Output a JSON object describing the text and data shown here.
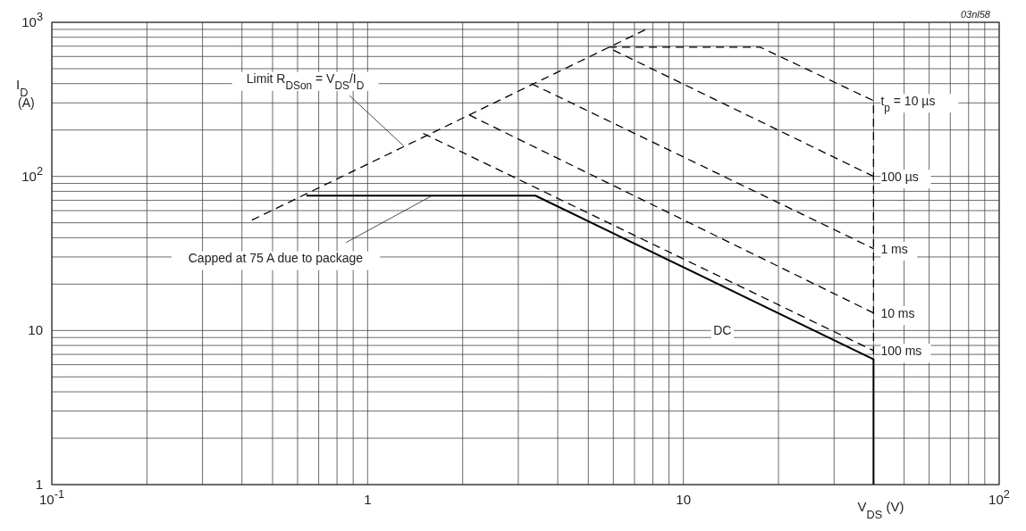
{
  "chart_data": {
    "type": "line",
    "log": "xy",
    "grid": true,
    "marker": "none",
    "xlabel": "V$_{DS}$ (V)",
    "ylabel": "I$_{D}$ (A)",
    "xlim": [
      0.1,
      100
    ],
    "ylim": [
      1,
      1000
    ],
    "xticks": [
      {
        "value": 0.1,
        "label": "10$^{-1}$"
      },
      1,
      10,
      {
        "value": 100,
        "label": "10$^{2}$"
      }
    ],
    "yticks": [
      1,
      10,
      {
        "value": 100,
        "label": "10$^{2}$"
      },
      {
        "value": 1000,
        "label": "10$^{3}$"
      }
    ],
    "series": [
      {
        "name": "t$_{p}$ = 10 µs",
        "color": "#000000",
        "line_style": "dashed",
        "x": [
          5.8,
          17.5,
          40,
          40
        ],
        "values": [
          690,
          690,
          310,
          6.5
        ]
      },
      {
        "name": "100 µs",
        "color": "#000000",
        "line_style": "dashed",
        "x": [
          6,
          40
        ],
        "values": [
          660,
          100
        ]
      },
      {
        "name": "1 ms",
        "color": "#000000",
        "line_style": "dashed",
        "x": [
          3.3,
          40
        ],
        "values": [
          400,
          34
        ]
      },
      {
        "name": "10 ms",
        "color": "#000000",
        "line_style": "dashed",
        "x": [
          2.1,
          40
        ],
        "values": [
          250,
          13
        ]
      },
      {
        "name": "100 ms",
        "color": "#000000",
        "line_style": "dashed",
        "x": [
          1.5,
          40
        ],
        "values": [
          190,
          7.4
        ]
      },
      {
        "name": "DC",
        "color": "#000000",
        "line_style": "solid",
        "x": [
          0.64,
          3.4,
          40,
          40
        ],
        "values": [
          75,
          75,
          6.5,
          1
        ]
      },
      {
        "color": "#000000",
        "line_style": "dashed",
        "x": [
          0.43,
          7.7
        ],
        "values": [
          52,
          910
        ]
      }
    ],
    "annotations": [
      {
        "text": "Limit R$_{DSon}$ = V$_{DS}$/I$_{D}$",
        "x": 1.3,
        "y": 158
      },
      {
        "text": "Capped at 75 A due to package",
        "x": 1.6,
        "y": 75
      },
      "03nl58"
    ]
  }
}
